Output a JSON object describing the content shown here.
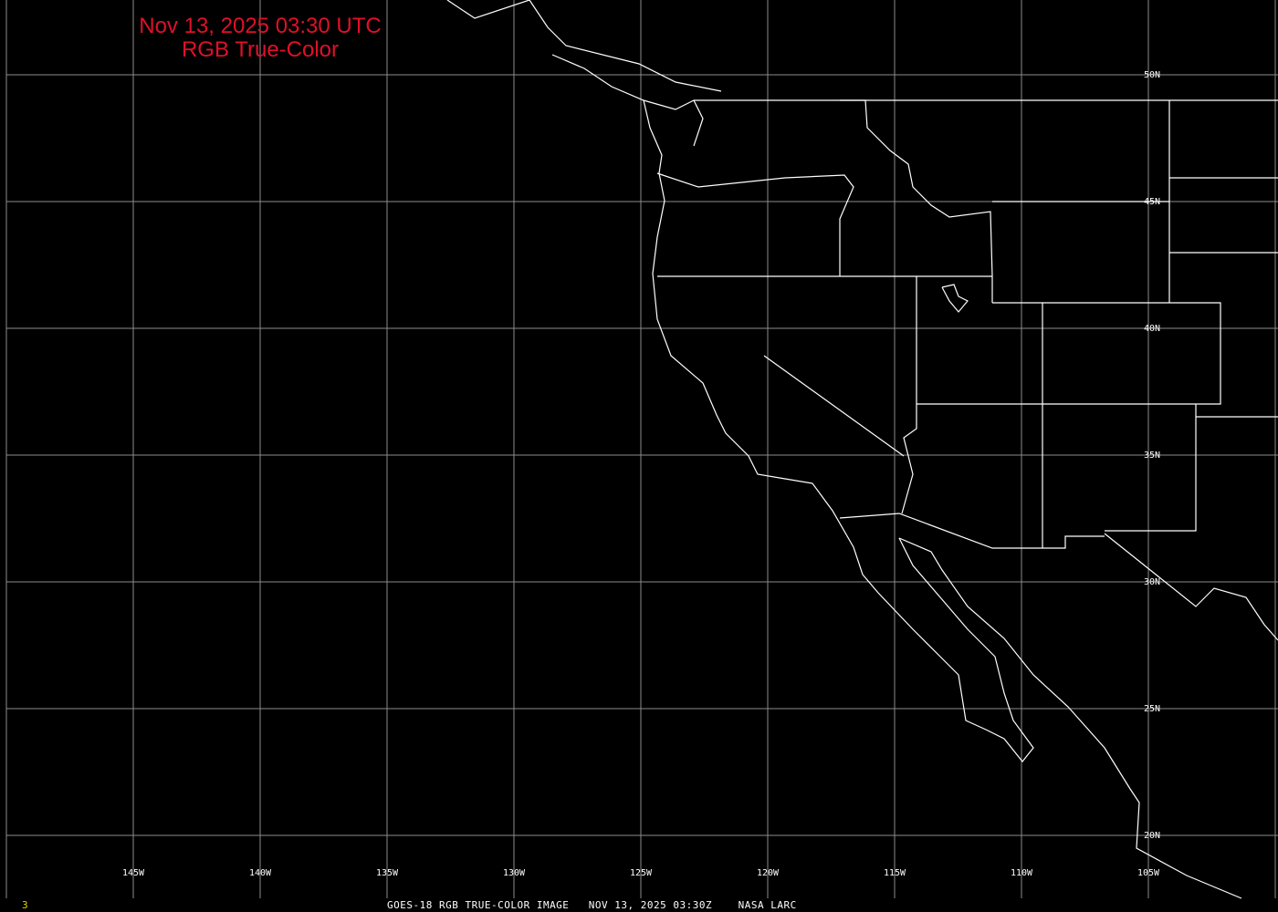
{
  "title": {
    "line1": "Nov 13, 2025 03:30 UTC",
    "line2": "RGB True-Color"
  },
  "footer": {
    "frame_number": "3",
    "caption": "GOES-18 RGB TRUE-COLOR IMAGE   NOV 13, 2025 03:30Z    NASA LARC"
  },
  "map": {
    "longitude_labels": [
      "145W",
      "140W",
      "135W",
      "130W",
      "125W",
      "120W",
      "115W",
      "110W",
      "105W"
    ],
    "latitude_labels": [
      "50N",
      "45N",
      "40N",
      "35N",
      "30N",
      "25N",
      "20N"
    ],
    "colors": {
      "background": "#000000",
      "grid": "#8c8c8c",
      "outlines": "#ffffff",
      "title": "#e0102a",
      "frame_number": "#e8d000"
    }
  }
}
